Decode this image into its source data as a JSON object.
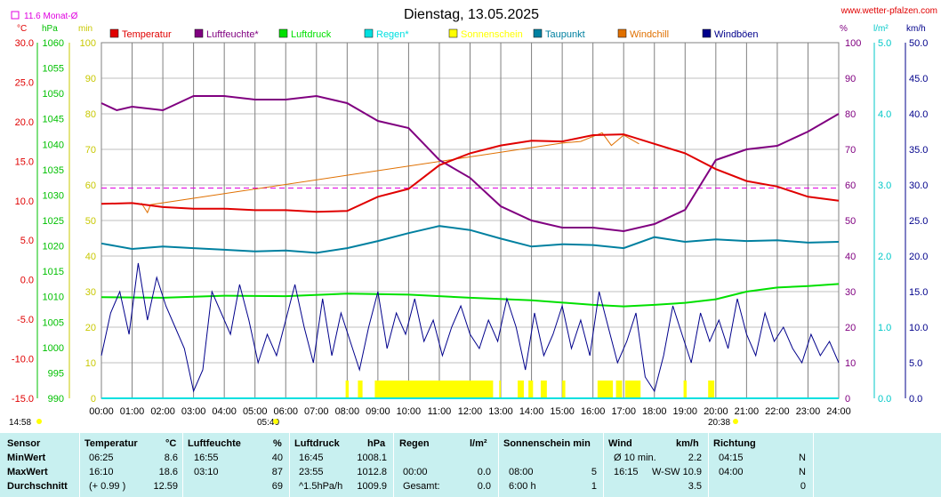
{
  "page": {
    "title": "Dienstag, 13.05.2025",
    "site_link": "www.wetter-pfalzen.com",
    "month_avg_label": "11.6 Monat-Ø",
    "time_left": "14:58",
    "sunrise_time": "05:40",
    "sunset_time": "20:38"
  },
  "colors": {
    "temperatur": "#e00000",
    "luftfeuchte": "#800080",
    "luftdruck": "#00e000",
    "regen": "#00e0e0",
    "sonnenschein": "#ffff00",
    "taupunkt": "#0080a0",
    "windchill": "#e07000",
    "windboeen": "#00008b",
    "month_avg_line": "#e000e0",
    "grid": "#808080"
  },
  "chart_data": {
    "type": "line",
    "title": "Dienstag, 13.05.2025",
    "x_ticks": [
      "00:00",
      "01:00",
      "02:00",
      "03:00",
      "04:00",
      "05:00",
      "06:00",
      "07:00",
      "08:00",
      "09:00",
      "10:00",
      "11:00",
      "12:00",
      "13:00",
      "14:00",
      "15:00",
      "16:00",
      "17:00",
      "18:00",
      "19:00",
      "20:00",
      "21:00",
      "22:00",
      "23:00",
      "24:00"
    ],
    "axes": {
      "temp": {
        "unit": "°C",
        "ticks": [
          "30.0",
          "25.0",
          "20.0",
          "15.0",
          "10.0",
          "5.0",
          "0.0",
          "-5.0",
          "-10.0",
          "-15.0"
        ],
        "range": [
          -15,
          30
        ]
      },
      "hpa": {
        "unit": "hPa",
        "ticks": [
          "1060",
          "1055",
          "1050",
          "1045",
          "1040",
          "1035",
          "1030",
          "1025",
          "1020",
          "1015",
          "1010",
          "1005",
          "1000",
          "995",
          "990"
        ],
        "range": [
          990,
          1060
        ]
      },
      "min": {
        "unit": "min",
        "ticks": [
          "100",
          "90",
          "80",
          "70",
          "60",
          "50",
          "40",
          "30",
          "20",
          "10",
          "0"
        ],
        "range": [
          0,
          100
        ]
      },
      "percent": {
        "unit": "%",
        "ticks": [
          "100",
          "90",
          "80",
          "70",
          "60",
          "50",
          "40",
          "30",
          "20",
          "10",
          "0"
        ],
        "range": [
          0,
          100
        ]
      },
      "lm2": {
        "unit": "l/m²",
        "ticks": [
          "5.0",
          "4.0",
          "3.0",
          "2.0",
          "1.0",
          "0.0"
        ],
        "range": [
          0,
          5
        ]
      },
      "kmh": {
        "unit": "km/h",
        "ticks": [
          "50.0",
          "45.0",
          "40.0",
          "35.0",
          "30.0",
          "25.0",
          "20.0",
          "15.0",
          "10.0",
          "5.0",
          "0.0"
        ],
        "range": [
          0,
          50
        ]
      }
    },
    "legend": [
      "Temperatur",
      "Luftfeuchte*",
      "Luftdruck",
      "Regen*",
      "Sonnenschein",
      "Taupunkt",
      "Windchill",
      "Windböen"
    ],
    "month_avg_temp": 11.6,
    "series": [
      {
        "name": "Temperatur",
        "axis": "temp",
        "color": "#e00000",
        "x": [
          0,
          1,
          2,
          3,
          4,
          5,
          6,
          7,
          8,
          9,
          10,
          11,
          12,
          13,
          14,
          15,
          16,
          17,
          18,
          19,
          20,
          21,
          22,
          23,
          24
        ],
        "values": [
          9.6,
          9.7,
          9.2,
          9.0,
          9.0,
          8.8,
          8.8,
          8.6,
          8.7,
          10.5,
          11.5,
          14.5,
          16.0,
          17.0,
          17.6,
          17.5,
          18.3,
          18.4,
          17.2,
          16.0,
          14.0,
          12.5,
          11.8,
          10.5,
          10.0
        ]
      },
      {
        "name": "Luftfeuchte*",
        "axis": "percent",
        "color": "#800080",
        "x": [
          0,
          0.5,
          1,
          2,
          3,
          4,
          5,
          6,
          7,
          8,
          9,
          10,
          11,
          12,
          13,
          14,
          15,
          16,
          17,
          18,
          19,
          20,
          21,
          22,
          23,
          24
        ],
        "values": [
          83,
          81,
          82,
          81,
          85,
          85,
          84,
          84,
          85,
          83,
          78,
          76,
          67,
          62,
          54,
          50,
          48,
          48,
          47,
          49,
          53,
          67,
          70,
          71,
          75,
          80
        ]
      },
      {
        "name": "Luftdruck",
        "axis": "hpa",
        "color": "#00e000",
        "x": [
          0,
          2,
          4,
          6,
          8,
          10,
          12,
          14,
          16,
          17,
          18,
          19,
          20,
          21,
          22,
          23,
          24
        ],
        "values": [
          1009.9,
          1009.8,
          1010.2,
          1010.1,
          1010.6,
          1010.4,
          1009.8,
          1009.3,
          1008.4,
          1008.1,
          1008.4,
          1008.8,
          1009.5,
          1011.0,
          1011.8,
          1012.1,
          1012.5
        ]
      },
      {
        "name": "Regen*",
        "axis": "lm2",
        "color": "#00e0e0",
        "x": [
          0,
          24
        ],
        "values": [
          0.0,
          0.0
        ]
      },
      {
        "name": "Taupunkt",
        "axis": "temp",
        "color": "#0080a0",
        "x": [
          0,
          1,
          2,
          3,
          4,
          5,
          6,
          7,
          8,
          9,
          10,
          11,
          12,
          13,
          14,
          15,
          16,
          17,
          18,
          19,
          20,
          21,
          22,
          23,
          24
        ],
        "values": [
          4.6,
          3.9,
          4.2,
          4.0,
          3.8,
          3.6,
          3.7,
          3.4,
          4.0,
          4.9,
          5.9,
          6.8,
          6.3,
          5.2,
          4.2,
          4.5,
          4.4,
          4.0,
          5.4,
          4.8,
          5.1,
          4.9,
          5.0,
          4.7,
          4.8
        ]
      },
      {
        "name": "Windchill",
        "axis": "temp",
        "color": "#e07000",
        "x": [
          1.3,
          1.5,
          1.6,
          15.0,
          15.6,
          16.3,
          16.6,
          17.0,
          17.5
        ],
        "values": [
          9.7,
          8.5,
          9.5,
          17.3,
          17.5,
          18.6,
          17.0,
          18.3,
          17.2
        ]
      },
      {
        "name": "Windböen",
        "axis": "kmh",
        "color": "#00008b",
        "x": [
          0,
          0.3,
          0.6,
          0.9,
          1.2,
          1.5,
          1.8,
          2.1,
          2.4,
          2.7,
          3.0,
          3.3,
          3.6,
          3.9,
          4.2,
          4.5,
          4.8,
          5.1,
          5.4,
          5.7,
          6.0,
          6.3,
          6.6,
          6.9,
          7.2,
          7.5,
          7.8,
          8.1,
          8.4,
          8.7,
          9.0,
          9.3,
          9.6,
          9.9,
          10.2,
          10.5,
          10.8,
          11.1,
          11.4,
          11.7,
          12.0,
          12.3,
          12.6,
          12.9,
          13.2,
          13.5,
          13.8,
          14.1,
          14.4,
          14.7,
          15.0,
          15.3,
          15.6,
          15.9,
          16.2,
          16.5,
          16.8,
          17.1,
          17.4,
          17.7,
          18.0,
          18.3,
          18.6,
          18.9,
          19.2,
          19.5,
          19.8,
          20.1,
          20.4,
          20.7,
          21.0,
          21.3,
          21.6,
          21.9,
          22.2,
          22.5,
          22.8,
          23.1,
          23.4,
          23.7,
          24.0
        ],
        "values": [
          6,
          12,
          15,
          9,
          19,
          11,
          17,
          13,
          10,
          7,
          1,
          4,
          15,
          12,
          9,
          16,
          11,
          5,
          9,
          6,
          11,
          16,
          10,
          5,
          14,
          6,
          12,
          8,
          4,
          10,
          15,
          7,
          12,
          9,
          14,
          8,
          11,
          6,
          10,
          13,
          9,
          7,
          11,
          8,
          14,
          10,
          4,
          12,
          6,
          9,
          13,
          7,
          11,
          6,
          15,
          10,
          5,
          8,
          12,
          3,
          1,
          6,
          13,
          9,
          5,
          12,
          8,
          11,
          7,
          14,
          9,
          6,
          12,
          8,
          10,
          7,
          5,
          9,
          6,
          8,
          5
        ]
      }
    ],
    "sunshine_blocks": [
      [
        7.95,
        8.05
      ],
      [
        8.35,
        8.5
      ],
      [
        8.9,
        12.75
      ],
      [
        12.95,
        13.0
      ],
      [
        13.55,
        13.75
      ],
      [
        13.9,
        14.05
      ],
      [
        14.3,
        14.5
      ],
      [
        15.0,
        15.1
      ],
      [
        16.15,
        16.65
      ],
      [
        16.75,
        16.95
      ],
      [
        17.05,
        17.55
      ],
      [
        18.95,
        19.05
      ],
      [
        19.75,
        19.95
      ]
    ]
  },
  "stats": {
    "headers": {
      "sensor": "Sensor",
      "temperatur": "Temperatur",
      "temperatur_unit": "°C",
      "luftfeuchte": "Luftfeuchte",
      "luftfeuchte_unit": "%",
      "luftdruck": "Luftdruck",
      "luftdruck_unit": "hPa",
      "regen": "Regen",
      "regen_unit": "l/m²",
      "sonnenschein": "Sonnenschein min",
      "wind": "Wind",
      "wind_unit": "km/h",
      "richtung": "Richtung"
    },
    "rows": [
      {
        "label": "MinWert",
        "temp_time": "06:25",
        "temp_val": "8.6",
        "hum_time": "16:55",
        "hum_val": "40",
        "press_time": "16:45",
        "press_val": "1008.1",
        "rain_time": "",
        "rain_val": "",
        "sun_time": "",
        "sun_val": "",
        "wind_time": "Ø 10 min.",
        "wind_val": "2.2",
        "dir_time": "04:15",
        "dir_val": "N"
      },
      {
        "label": "MaxWert",
        "temp_time": "16:10",
        "temp_val": "18.6",
        "hum_time": "03:10",
        "hum_val": "87",
        "press_time": "23:55",
        "press_val": "1012.8",
        "rain_time": "00:00",
        "rain_val": "0.0",
        "sun_time": "08:00",
        "sun_val": "5",
        "wind_time": "16:15",
        "wind_val": "W-SW 10.9",
        "dir_time": "04:00",
        "dir_val": "N"
      },
      {
        "label": "Durchschnitt",
        "temp_time": "(+ 0.99 )",
        "temp_val": "12.59",
        "hum_time": "",
        "hum_val": "69",
        "press_time": "^1.5hPa/h",
        "press_val": "1009.9",
        "rain_time": "Gesamt:",
        "rain_val": "0.0",
        "sun_time": "6:00 h",
        "sun_val": "1",
        "wind_time": "",
        "wind_val": "3.5",
        "dir_time": "",
        "dir_val": "0"
      }
    ]
  }
}
